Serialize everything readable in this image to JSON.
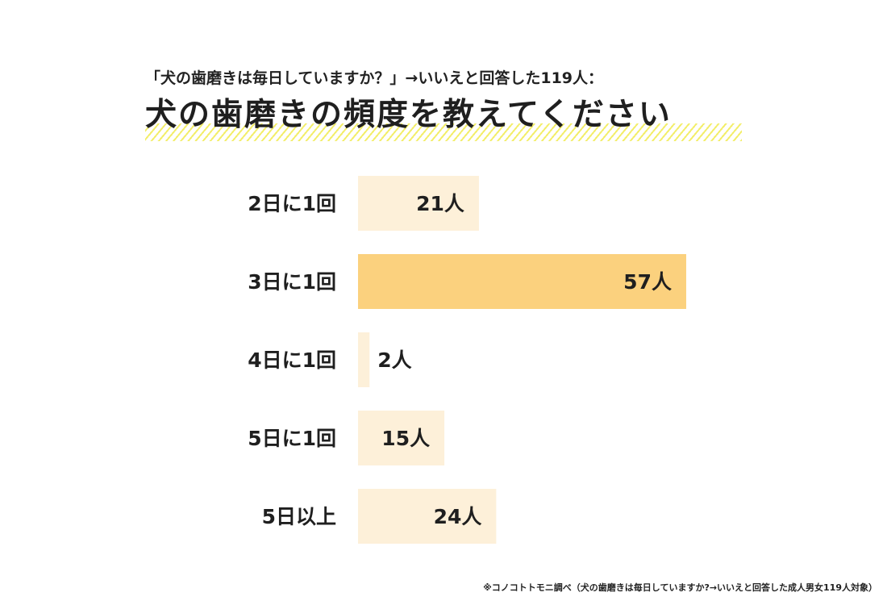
{
  "header": {
    "subtitle": "「犬の歯磨きは毎日していますか？」→いいえと回答した119人：",
    "title": "犬の歯磨きの頻度を教えてください"
  },
  "chart_data": {
    "type": "bar",
    "orientation": "horizontal",
    "categories": [
      "2日に1回",
      "3日に1回",
      "4日に1回",
      "5日に1回",
      "5日以上"
    ],
    "values": [
      21,
      57,
      2,
      15,
      24
    ],
    "value_labels": [
      "21人",
      "57人",
      "2人",
      "15人",
      "24人"
    ],
    "unit": "人",
    "highlight_index": 1,
    "colors": {
      "bar": "#fdf0d9",
      "highlight": "#fbd17e"
    },
    "grid": false,
    "legend": "none"
  },
  "footnote": "※コノコトトモニ調べ（犬の歯磨きは毎日していますか?→いいえと回答した成人男女119人対象）"
}
